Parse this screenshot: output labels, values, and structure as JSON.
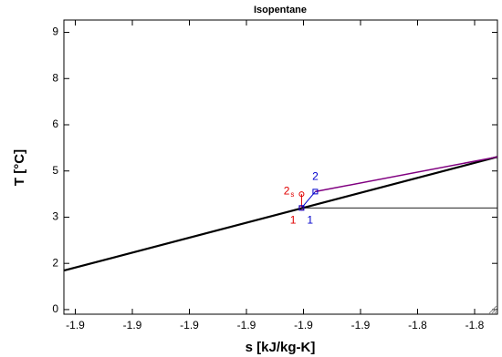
{
  "chart_data": {
    "type": "line",
    "title": "Isopentane",
    "x_label": "s [kJ/kg-K]",
    "y_label": "T [°C]",
    "xlim": [
      -1.938,
      -1.824
    ],
    "ylim": [
      -0.15,
      9.4
    ],
    "xticks": [
      {
        "value": -1.935,
        "label": "-1.9"
      },
      {
        "value": -1.92,
        "label": "-1.9"
      },
      {
        "value": -1.905,
        "label": "-1.9"
      },
      {
        "value": -1.89,
        "label": "-1.9"
      },
      {
        "value": -1.875,
        "label": "-1.9"
      },
      {
        "value": -1.86,
        "label": "-1.9"
      },
      {
        "value": -1.845,
        "label": "-1.8"
      },
      {
        "value": -1.83,
        "label": "-1.8"
      }
    ],
    "yticks": [
      0,
      {
        "value": 1.5,
        "label": "2"
      },
      3,
      {
        "value": 4.5,
        "label": "5"
      },
      6,
      {
        "value": 7.5,
        "label": "8"
      },
      9
    ],
    "series": [
      {
        "color": "#000000",
        "width": 2.2,
        "x": [
          -1.9379,
          -1.8239
        ],
        "values": [
          1.27,
          4.96
        ]
      },
      {
        "color": "#800080",
        "width": 1.5,
        "x": [
          -1.8719,
          -1.8239
        ],
        "values": [
          3.83,
          4.96
        ]
      },
      {
        "color": "#000000",
        "width": 0.8,
        "x": [
          -1.8755,
          -1.8239
        ],
        "values": [
          3.3,
          3.3
        ]
      },
      {
        "color": "#e00000",
        "width": 1,
        "marker": "circle",
        "x": [
          -1.8755,
          -1.8755
        ],
        "values": [
          3.3,
          3.75
        ],
        "labels": [
          "1",
          "2"
        ],
        "label_subscripts": [
          null,
          "s"
        ]
      },
      {
        "color": "#0000cc",
        "width": 1,
        "marker": "square",
        "x": [
          -1.8755,
          -1.8719
        ],
        "values": [
          3.3,
          3.83
        ],
        "labels": [
          "1",
          "2"
        ]
      }
    ]
  }
}
